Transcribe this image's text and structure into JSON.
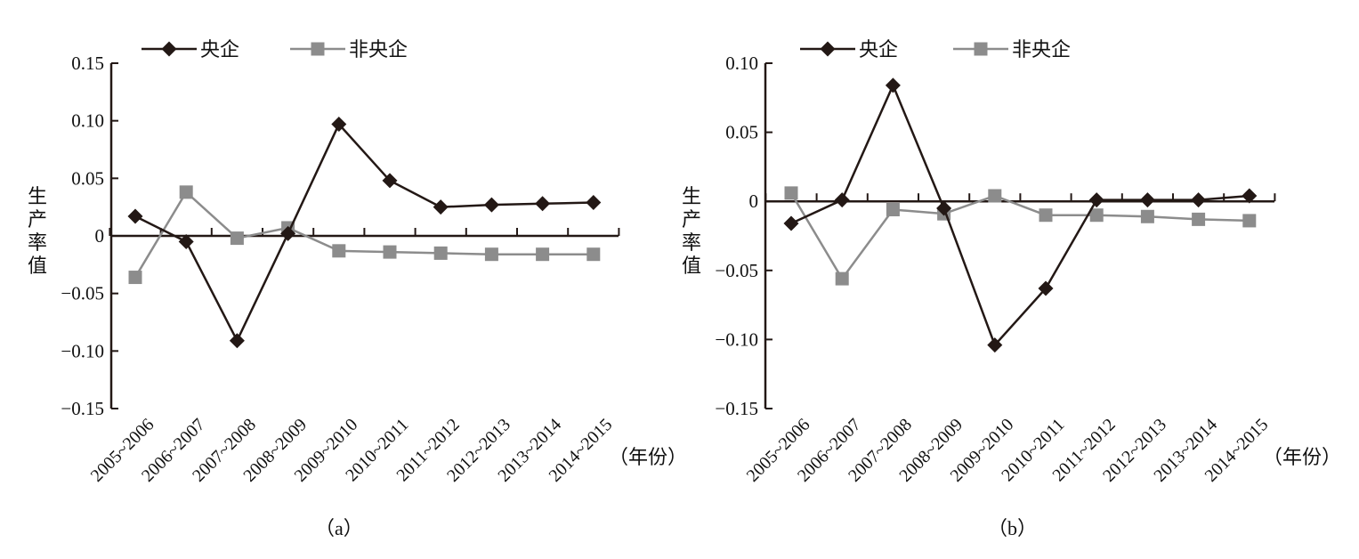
{
  "colors": {
    "central": "#231815",
    "noncentral": "#8c8c8c",
    "axis": "#231815"
  },
  "chart_data": [
    {
      "type": "line",
      "panel_label": "（a）",
      "ylabel": "生产率值",
      "xunit": "（年份）",
      "ylim": [
        -0.15,
        0.15
      ],
      "yticks": [
        0.15,
        0.1,
        0.05,
        0,
        -0.05,
        -0.1,
        -0.15
      ],
      "ytick_labels": [
        "0.15",
        "0.10",
        "0.05",
        "0",
        "−0.05",
        "−0.10",
        "−0.15"
      ],
      "categories": [
        "2005~2006",
        "2006~2007",
        "2007~2008",
        "2008~2009",
        "2009~2010",
        "2010~2011",
        "2011~2012",
        "2012~2013",
        "2013~2014",
        "2014~2015"
      ],
      "legend_position": "top",
      "series": [
        {
          "name": "央企",
          "marker": "diamond",
          "values": [
            0.017,
            -0.005,
            -0.091,
            0.002,
            0.097,
            0.048,
            0.025,
            0.027,
            0.028,
            0.029
          ]
        },
        {
          "name": "非央企",
          "marker": "square",
          "values": [
            -0.036,
            0.038,
            -0.002,
            0.007,
            -0.013,
            -0.014,
            -0.015,
            -0.016,
            -0.016,
            -0.016
          ]
        }
      ]
    },
    {
      "type": "line",
      "panel_label": "（b）",
      "ylabel": "生产率值",
      "xunit": "（年份）",
      "ylim": [
        -0.15,
        0.1
      ],
      "yticks": [
        0.1,
        0.05,
        0,
        -0.05,
        -0.1,
        -0.15
      ],
      "ytick_labels": [
        "0.10",
        "0.05",
        "0",
        "−0.05",
        "−0.10",
        "−0.15"
      ],
      "categories": [
        "2005~2006",
        "2006~2007",
        "2007~2008",
        "2008~2009",
        "2009~2010",
        "2010~2011",
        "2011~2012",
        "2012~2013",
        "2013~2014",
        "2014~2015"
      ],
      "legend_position": "top",
      "series": [
        {
          "name": "央企",
          "marker": "diamond",
          "values": [
            -0.016,
            0.001,
            0.084,
            -0.005,
            -0.104,
            -0.063,
            0.001,
            0.001,
            0.001,
            0.004
          ]
        },
        {
          "name": "非央企",
          "marker": "square",
          "values": [
            0.006,
            -0.056,
            -0.006,
            -0.009,
            0.004,
            -0.01,
            -0.01,
            -0.011,
            -0.013,
            -0.014
          ]
        }
      ]
    }
  ]
}
